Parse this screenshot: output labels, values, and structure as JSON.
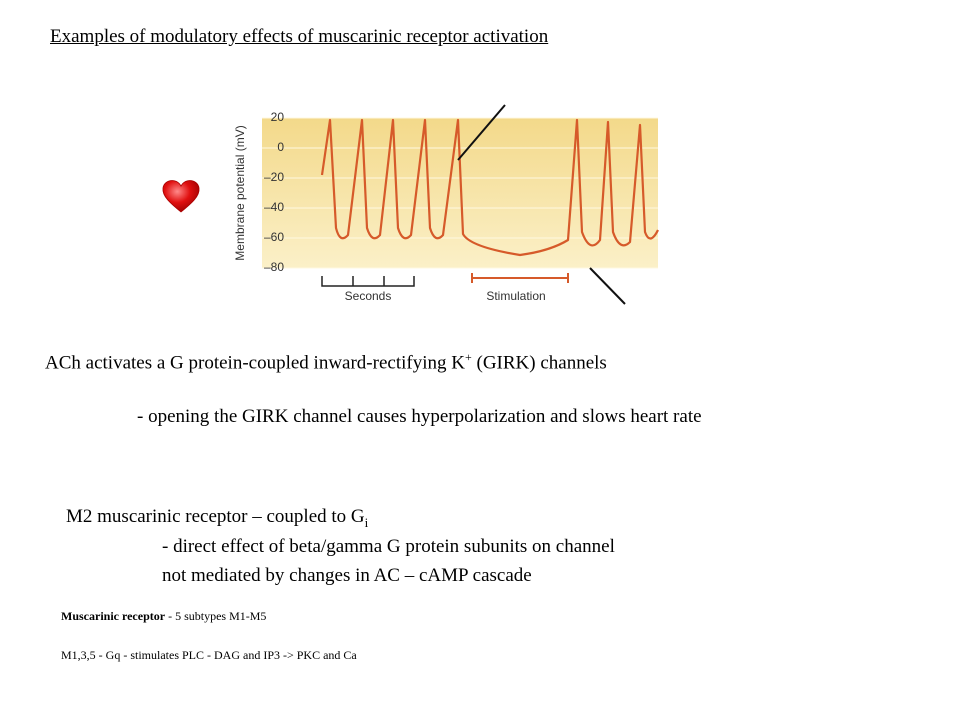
{
  "title": "Examples of modulatory effects of muscarinic receptor activation",
  "figure": {
    "ylabel": "Membrane potential (mV)",
    "ylim": [
      20,
      -80
    ],
    "yticks": [
      20,
      0,
      {
        "value": -20,
        "label": "–20"
      },
      {
        "value": -40,
        "label": "–40"
      },
      {
        "value": -60,
        "label": "–60"
      },
      {
        "value": -80,
        "label": "–80"
      }
    ],
    "scale_label": "Seconds",
    "stim_label": "Stimulation"
  },
  "girk": {
    "line1": {
      "before": "ACh activates a G protein-coupled inward-rectifying K",
      "sup": "+",
      "after": " (GIRK) channels"
    },
    "line2": "- opening the GIRK channel causes hyperpolarization and slows heart rate"
  },
  "m2": {
    "line1": {
      "before": "M2 muscarinic receptor – coupled to G",
      "sub": "i"
    },
    "line2": "- direct effect of beta/gamma G protein subunits on channel",
    "line3": "not mediated by changes in AC – cAMP cascade"
  },
  "notes": {
    "line1": {
      "bold": "Muscarinic receptor",
      "rest": " - 5 subtypes M1-M5"
    },
    "line2": "M1,3,5 - Gq - stimulates PLC - DAG and IP3 -> PKC and Ca"
  }
}
